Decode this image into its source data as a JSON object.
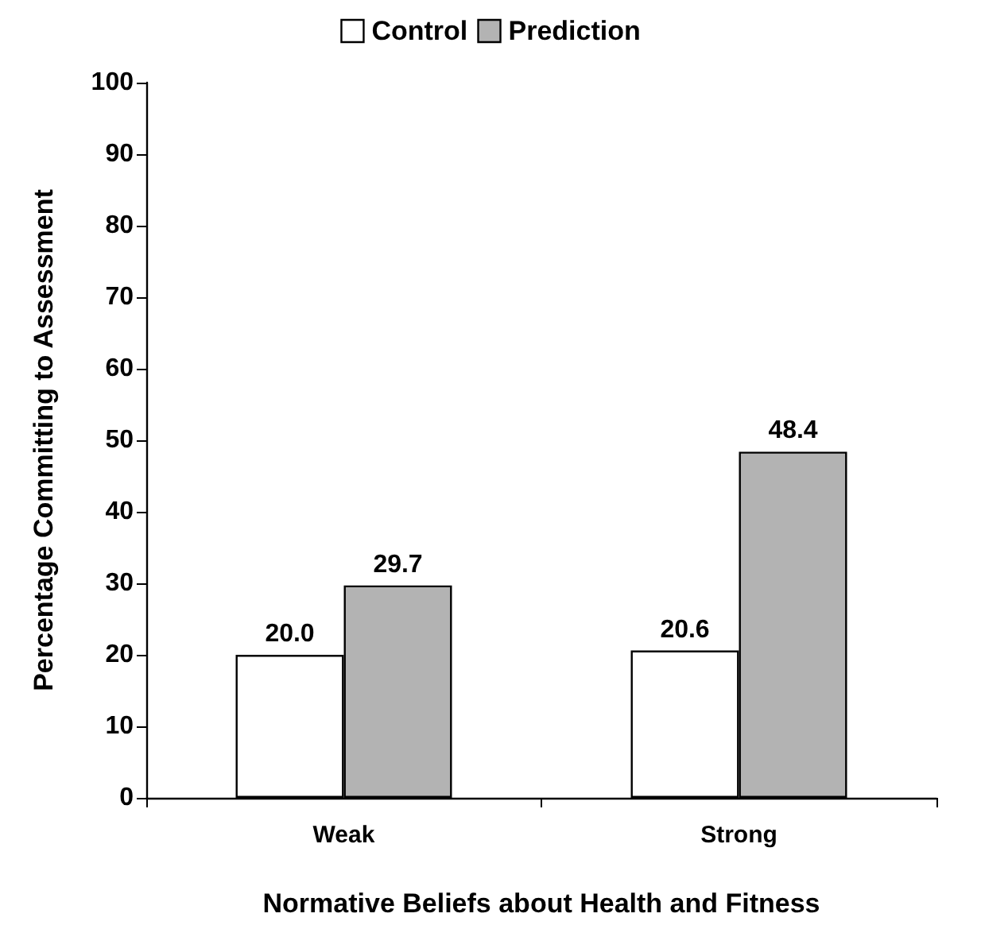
{
  "chart_data": {
    "type": "bar",
    "xlabel": "Normative Beliefs about Health and Fitness",
    "ylabel": "Percentage Committing to Assessment",
    "categories": [
      "Weak",
      "Strong"
    ],
    "series": [
      {
        "name": "Control",
        "color": "#ffffff",
        "values": [
          20.0,
          20.6
        ],
        "value_labels": [
          "20.0",
          "20.6"
        ]
      },
      {
        "name": "Prediction",
        "color": "#b3b3b3",
        "values": [
          29.7,
          48.4
        ],
        "value_labels": [
          "29.7",
          "48.4"
        ]
      }
    ],
    "ylim": [
      0,
      100
    ],
    "yticks": [
      0,
      10,
      20,
      30,
      40,
      50,
      60,
      70,
      80,
      90,
      100
    ],
    "grid": false,
    "legend": "top"
  }
}
